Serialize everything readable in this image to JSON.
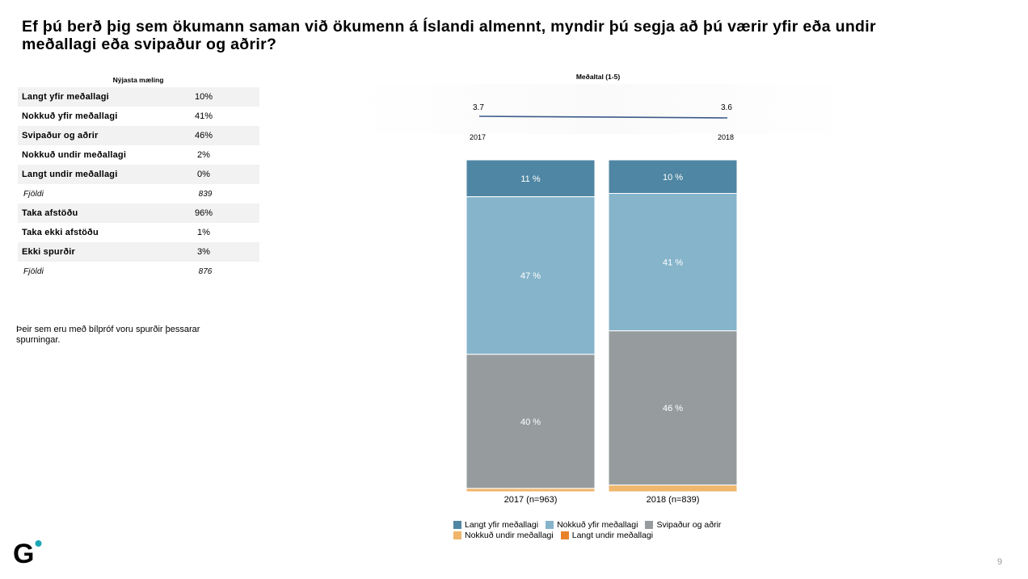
{
  "slide": {
    "title": "Ef þú berð þig sem ökumann saman við ökumenn á Íslandi almennt, myndir þú segja að þú værir yfir eða undir meðallagi eða svipaður og aðrir?",
    "page_number": "9",
    "note": "Þeir sem eru með bílpróf voru spurðir þessarar spurningar."
  },
  "table": {
    "heading": "Nýjasta mæling",
    "rows": [
      {
        "label": "Langt yfir meðallagi",
        "value": "10%"
      },
      {
        "label": "Nokkuð yfir meðallagi",
        "value": "41%"
      },
      {
        "label": "Svipaður og aðrir",
        "value": "46%"
      },
      {
        "label": "Nokkuð undir meðallagi",
        "value": "2%"
      },
      {
        "label": "Langt undir meðallagi",
        "value": "0%"
      },
      {
        "label": "Fjöldi",
        "value": "839"
      },
      {
        "label": "Taka afstöðu",
        "value": "96%"
      },
      {
        "label": "Taka ekki afstöðu",
        "value": "1%"
      },
      {
        "label": "Ekki spurðir",
        "value": "3%"
      },
      {
        "label": "Fjöldi",
        "value": "876"
      }
    ]
  },
  "mean": {
    "title": "Meðaltal (1-5)",
    "points": [
      {
        "year": "2017",
        "value": "3.7"
      },
      {
        "year": "2018",
        "value": "3.6"
      }
    ],
    "line_color": "#3b5a8a"
  },
  "chart_data": {
    "type": "bar",
    "stacked": true,
    "categories": [
      "2017 (n=963)",
      "2018 (n=839)"
    ],
    "ylim": [
      0,
      100
    ],
    "series": [
      {
        "name": "Langt yfir meðallagi",
        "values": [
          11,
          10
        ],
        "color": "#4f86a3",
        "labels": [
          "11 %",
          "10 %"
        ]
      },
      {
        "name": "Nokkuð yfir meðallagi",
        "values": [
          47,
          41
        ],
        "color": "#86b4cb",
        "labels": [
          "47 %",
          "41 %"
        ]
      },
      {
        "name": "Svipaður og aðrir",
        "values": [
          40,
          46
        ],
        "color": "#969c9d",
        "labels": [
          "40 %",
          "46 %"
        ]
      },
      {
        "name": "Nokkuð undir meðallagi",
        "values": [
          1,
          2
        ],
        "color": "#f0b66c",
        "labels": [
          "",
          ""
        ]
      },
      {
        "name": "Langt undir meðallagi",
        "values": [
          0,
          0
        ],
        "color": "#e8822a",
        "labels": [
          "",
          ""
        ]
      }
    ],
    "legend_position": "bottom"
  },
  "logo": {
    "letter": "G",
    "dot_color": "#1aa7b5"
  }
}
